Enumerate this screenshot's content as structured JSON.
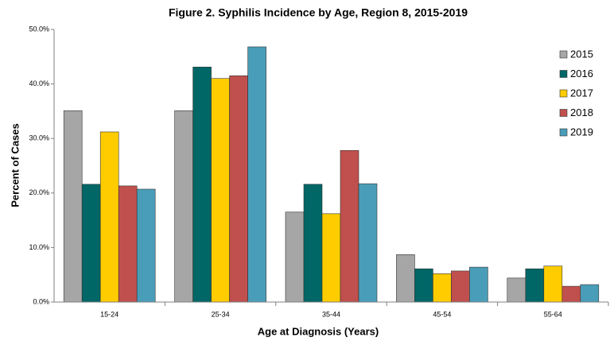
{
  "chart_data": {
    "type": "bar",
    "title": "Figure 2. Syphilis Incidence by Age, Region 8, 2015-2019",
    "x_label": "Age at Diagnosis (Years)",
    "y_label": "Percent of Cases",
    "categories": [
      "15-24",
      "25-34",
      "35-44",
      "45-54",
      "55-64"
    ],
    "series": [
      {
        "name": "2015",
        "color": "#a6a6a6",
        "values": [
          35.1,
          35.1,
          16.5,
          8.7,
          4.4
        ]
      },
      {
        "name": "2016",
        "color": "#006666",
        "values": [
          21.6,
          43.1,
          21.6,
          6.1,
          6.1
        ]
      },
      {
        "name": "2017",
        "color": "#ffcc00",
        "values": [
          31.2,
          41.0,
          16.2,
          5.2,
          6.6
        ]
      },
      {
        "name": "2018",
        "color": "#c0504d",
        "values": [
          21.3,
          41.5,
          27.8,
          5.7,
          2.9
        ]
      },
      {
        "name": "2019",
        "color": "#4a9db8",
        "values": [
          20.7,
          46.8,
          21.7,
          6.4,
          3.2
        ]
      }
    ],
    "ylim": [
      0,
      50
    ],
    "yticks": [
      {
        "value": 0,
        "label": "0.0%"
      },
      {
        "value": 10,
        "label": "10.0%"
      },
      {
        "value": 20,
        "label": "20.0%"
      },
      {
        "value": 30,
        "label": "30.0%"
      },
      {
        "value": 40,
        "label": "40.0%"
      },
      {
        "value": 50,
        "label": "50.0%"
      }
    ],
    "legend": "right"
  }
}
